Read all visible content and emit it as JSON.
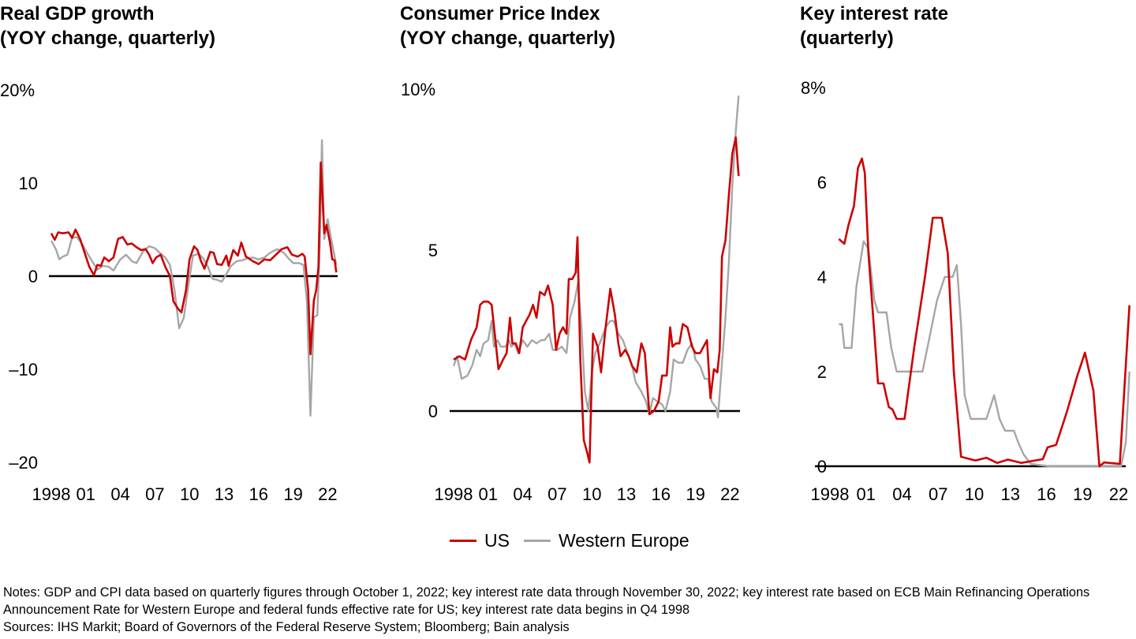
{
  "colors": {
    "us": "#cc0000",
    "we": "#a6a6a6",
    "axis": "#000000"
  },
  "legend": {
    "us": "US",
    "we": "Western Europe"
  },
  "notes": [
    "Notes: GDP and CPI data based on quarterly figures through October 1, 2022; key interest rate data through November 30, 2022; key interest rate based on ECB Main Refinancing Operations Announcement Rate for Western Europe and federal funds effective rate for US; key interest rate data begins in Q4 1998",
    "Sources: IHS Markit; Board of Governors of the Federal Reserve System; Bloomberg; Bain analysis"
  ],
  "chart_data": [
    {
      "type": "line",
      "title": "Real GDP growth\n(YOY change, quarterly)",
      "ylim": [
        -20,
        20
      ],
      "yticks": [
        {
          "v": 20,
          "label": "20%"
        },
        {
          "v": 10,
          "label": "10"
        },
        {
          "v": 0,
          "label": "0"
        },
        {
          "v": -10,
          "label": "–10"
        },
        {
          "v": -20,
          "label": "–20"
        }
      ],
      "xticks": [
        {
          "v": 1998,
          "label": "1998"
        },
        {
          "v": 2001,
          "label": "01"
        },
        {
          "v": 2004,
          "label": "04"
        },
        {
          "v": 2007,
          "label": "07"
        },
        {
          "v": 2010,
          "label": "10"
        },
        {
          "v": 2013,
          "label": "13"
        },
        {
          "v": 2016,
          "label": "16"
        },
        {
          "v": 2019,
          "label": "19"
        },
        {
          "v": 2022,
          "label": "22"
        }
      ],
      "series": [
        {
          "name": "Western Europe",
          "x": [
            1998.0,
            1998.4,
            1998.7,
            1999.0,
            1999.4,
            1999.8,
            2000.2,
            2000.6,
            2001.0,
            2001.5,
            2002.0,
            2002.5,
            2003.0,
            2003.4,
            2004.0,
            2004.5,
            2005.0,
            2005.4,
            2006.0,
            2006.5,
            2007.0,
            2007.5,
            2007.9,
            2008.3,
            2008.7,
            2009.1,
            2009.5,
            2009.9,
            2010.3,
            2010.8,
            2011.2,
            2011.6,
            2012.0,
            2012.4,
            2012.8,
            2013.2,
            2013.6,
            2014.1,
            2014.6,
            2015.0,
            2015.5,
            2016.0,
            2016.5,
            2017.0,
            2017.6,
            2018.2,
            2018.6,
            2019.0,
            2019.5,
            2019.9,
            2020.2,
            2020.5,
            2020.8,
            2021.1,
            2021.3,
            2021.5,
            2021.7,
            2022.0,
            2022.3,
            2022.75
          ],
          "y": [
            3.8,
            2.9,
            1.8,
            2.1,
            2.3,
            4.1,
            4.2,
            3.6,
            2.7,
            1.7,
            0.7,
            1.1,
            1.0,
            0.6,
            1.8,
            2.3,
            1.6,
            1.4,
            2.7,
            3.2,
            3.0,
            2.4,
            2.0,
            1.2,
            -1.5,
            -5.6,
            -4.5,
            -1.0,
            2.2,
            2.4,
            1.9,
            1.0,
            -0.3,
            -0.4,
            -0.6,
            0.2,
            1.1,
            1.6,
            1.7,
            1.9,
            2.0,
            1.8,
            2.0,
            2.5,
            2.9,
            2.5,
            1.9,
            1.4,
            1.4,
            1.2,
            -2.8,
            -15.0,
            -4.4,
            -4.2,
            3.0,
            14.6,
            4.0,
            6.1,
            4.0,
            1.2
          ]
        },
        {
          "name": "US",
          "x": [
            1998.0,
            1998.3,
            1998.6,
            1999.0,
            1999.5,
            1999.8,
            2000.1,
            2000.5,
            2000.9,
            2001.3,
            2001.7,
            2002.0,
            2002.3,
            2002.6,
            2003.0,
            2003.4,
            2003.8,
            2004.2,
            2004.6,
            2005.0,
            2005.4,
            2005.8,
            2006.2,
            2006.5,
            2006.8,
            2007.1,
            2007.5,
            2007.9,
            2008.3,
            2008.6,
            2009.0,
            2009.3,
            2009.7,
            2010.0,
            2010.4,
            2010.7,
            2011.0,
            2011.3,
            2011.8,
            2012.1,
            2012.4,
            2012.8,
            2013.2,
            2013.4,
            2013.8,
            2014.2,
            2014.5,
            2014.9,
            2015.5,
            2016.0,
            2016.5,
            2017.0,
            2017.5,
            2018.0,
            2018.5,
            2018.9,
            2019.4,
            2019.8,
            2020.0,
            2020.3,
            2020.5,
            2020.8,
            2021.0,
            2021.2,
            2021.4,
            2021.7,
            2021.9,
            2022.2,
            2022.4,
            2022.6,
            2022.75
          ],
          "y": [
            4.6,
            3.9,
            4.7,
            4.6,
            4.7,
            4.1,
            5.0,
            4.0,
            2.5,
            1.0,
            0.1,
            1.2,
            1.1,
            2.0,
            1.6,
            2.0,
            4.0,
            4.2,
            3.4,
            3.5,
            3.1,
            2.8,
            2.9,
            2.3,
            1.4,
            2.0,
            2.3,
            1.0,
            0.0,
            -2.7,
            -3.5,
            -3.9,
            -1.5,
            1.8,
            3.2,
            2.8,
            1.6,
            0.8,
            2.6,
            2.5,
            1.3,
            1.2,
            2.2,
            1.1,
            2.8,
            2.2,
            3.6,
            2.1,
            1.6,
            1.3,
            1.8,
            1.7,
            2.3,
            2.9,
            3.1,
            2.3,
            2.1,
            2.4,
            2.1,
            -1.5,
            -8.4,
            -2.6,
            -1.5,
            1.0,
            12.2,
            4.6,
            5.5,
            3.6,
            1.8,
            1.7,
            0.4
          ]
        }
      ]
    },
    {
      "type": "line",
      "title": "Consumer Price Index\n(YOY change, quarterly)",
      "ylim": [
        -2,
        10
      ],
      "yticks": [
        {
          "v": 10,
          "label": "10%"
        },
        {
          "v": 5,
          "label": "5"
        },
        {
          "v": 0,
          "label": "0"
        }
      ],
      "xticks": [
        {
          "v": 1998,
          "label": "1998"
        },
        {
          "v": 2001,
          "label": "01"
        },
        {
          "v": 2004,
          "label": "04"
        },
        {
          "v": 2007,
          "label": "07"
        },
        {
          "v": 2010,
          "label": "10"
        },
        {
          "v": 2013,
          "label": "13"
        },
        {
          "v": 2016,
          "label": "16"
        },
        {
          "v": 2019,
          "label": "19"
        },
        {
          "v": 2022,
          "label": "22"
        }
      ],
      "series": [
        {
          "name": "Western Europe",
          "x": [
            1998.0,
            1998.3,
            1998.7,
            1999.2,
            1999.6,
            2000.0,
            2000.3,
            2000.6,
            2001.0,
            2001.3,
            2001.5,
            2001.8,
            2002.1,
            2002.5,
            2002.8,
            2003.0,
            2003.3,
            2003.6,
            2004.0,
            2004.4,
            2004.8,
            2005.2,
            2005.6,
            2005.9,
            2006.3,
            2006.6,
            2007.0,
            2007.4,
            2007.8,
            2008.1,
            2008.5,
            2008.8,
            2009.1,
            2009.4,
            2009.7,
            2010.0,
            2010.3,
            2010.8,
            2011.2,
            2011.6,
            2011.9,
            2012.3,
            2012.7,
            2013.1,
            2013.5,
            2013.8,
            2014.3,
            2014.7,
            2015.0,
            2015.3,
            2015.7,
            2016.1,
            2016.4,
            2016.8,
            2017.1,
            2017.5,
            2017.9,
            2018.3,
            2018.7,
            2019.0,
            2019.4,
            2019.8,
            2020.1,
            2020.4,
            2020.8,
            2020.95,
            2021.3,
            2021.6,
            2021.9,
            2022.2,
            2022.5,
            2022.75
          ],
          "y": [
            1.4,
            1.7,
            1.0,
            1.1,
            1.4,
            1.9,
            1.7,
            2.1,
            2.2,
            2.8,
            2.0,
            2.2,
            2.0,
            2.0,
            2.2,
            2.0,
            2.1,
            1.8,
            2.2,
            2.0,
            2.2,
            2.1,
            2.2,
            2.2,
            2.4,
            1.9,
            1.9,
            2.0,
            1.8,
            2.9,
            3.4,
            4.0,
            2.6,
            0.6,
            0.0,
            1.2,
            1.8,
            2.2,
            2.6,
            2.8,
            2.8,
            2.4,
            2.2,
            1.8,
            1.4,
            0.9,
            0.6,
            0.3,
            -0.1,
            0.4,
            0.3,
            0.2,
            0.0,
            0.6,
            1.6,
            1.5,
            1.5,
            1.9,
            2.1,
            1.6,
            1.4,
            1.0,
            1.0,
            0.3,
            0.1,
            -0.2,
            1.5,
            2.9,
            4.6,
            7.0,
            8.7,
            9.8
          ]
        },
        {
          "name": "US",
          "x": [
            1998.0,
            1998.5,
            1999.0,
            1999.5,
            2000.0,
            2000.3,
            2000.6,
            2001.0,
            2001.3,
            2001.6,
            2001.9,
            2002.3,
            2002.6,
            2002.9,
            2003.1,
            2003.4,
            2003.7,
            2004.0,
            2004.3,
            2004.6,
            2004.9,
            2005.2,
            2005.5,
            2005.9,
            2006.2,
            2006.6,
            2006.9,
            2007.2,
            2007.5,
            2007.8,
            2008.0,
            2008.3,
            2008.6,
            2008.75,
            2009.0,
            2009.3,
            2009.6,
            2009.8,
            2010.1,
            2010.5,
            2010.8,
            2011.2,
            2011.6,
            2012.0,
            2012.3,
            2012.5,
            2012.9,
            2013.2,
            2013.5,
            2013.9,
            2014.3,
            2014.6,
            2015.0,
            2015.4,
            2015.8,
            2016.1,
            2016.5,
            2016.8,
            2017.0,
            2017.3,
            2017.6,
            2017.9,
            2018.3,
            2018.7,
            2019.0,
            2019.4,
            2019.7,
            2020.0,
            2020.3,
            2020.6,
            2020.9,
            2021.1,
            2021.3,
            2021.6,
            2021.9,
            2022.2,
            2022.5,
            2022.75
          ],
          "y": [
            1.6,
            1.7,
            1.6,
            2.2,
            2.6,
            3.3,
            3.4,
            3.4,
            3.3,
            2.3,
            1.3,
            1.6,
            1.8,
            2.9,
            2.1,
            2.1,
            1.8,
            2.6,
            2.8,
            3.0,
            3.3,
            2.9,
            3.7,
            3.6,
            3.9,
            3.3,
            1.9,
            2.4,
            2.6,
            2.4,
            4.1,
            4.1,
            4.3,
            5.4,
            1.6,
            -0.9,
            -1.3,
            -1.6,
            2.4,
            2.0,
            1.2,
            2.6,
            3.8,
            3.0,
            2.1,
            1.7,
            1.9,
            1.7,
            1.4,
            1.2,
            2.1,
            1.8,
            -0.1,
            0.0,
            0.3,
            1.1,
            1.1,
            2.6,
            2.0,
            2.1,
            2.1,
            2.7,
            2.6,
            2.0,
            1.8,
            1.8,
            2.0,
            2.2,
            0.4,
            1.3,
            1.2,
            1.9,
            4.8,
            5.3,
            6.7,
            8.0,
            8.5,
            7.3
          ]
        }
      ]
    },
    {
      "type": "line",
      "title": "Key interest rate\n(quarterly)",
      "ylim": [
        0,
        8
      ],
      "yticks": [
        {
          "v": 8,
          "label": "8%"
        },
        {
          "v": 6,
          "label": "6"
        },
        {
          "v": 4,
          "label": "4"
        },
        {
          "v": 2,
          "label": "2"
        },
        {
          "v": 0,
          "label": "0"
        }
      ],
      "xticks": [
        {
          "v": 1998,
          "label": "1998"
        },
        {
          "v": 2001,
          "label": "01"
        },
        {
          "v": 2004,
          "label": "04"
        },
        {
          "v": 2007,
          "label": "07"
        },
        {
          "v": 2010,
          "label": "10"
        },
        {
          "v": 2013,
          "label": "13"
        },
        {
          "v": 2016,
          "label": "16"
        },
        {
          "v": 2019,
          "label": "19"
        },
        {
          "v": 2022,
          "label": "22"
        }
      ],
      "series": [
        {
          "name": "Western Europe",
          "x": [
            1998.75,
            1999.0,
            1999.2,
            1999.8,
            2000.2,
            2000.8,
            2001.2,
            2001.7,
            2002.0,
            2002.7,
            2003.1,
            2003.55,
            2005.7,
            2006.3,
            2006.9,
            2007.55,
            2008.2,
            2008.55,
            2008.9,
            2009.2,
            2009.7,
            2011.0,
            2011.65,
            2012.1,
            2012.55,
            2013.3,
            2013.65,
            2014.1,
            2014.7,
            2016.2,
            2022.2,
            2022.6,
            2022.9
          ],
          "y": [
            3.0,
            3.0,
            2.5,
            2.5,
            3.8,
            4.75,
            4.6,
            3.5,
            3.25,
            3.25,
            2.5,
            2.0,
            2.0,
            2.75,
            3.5,
            4.0,
            4.0,
            4.25,
            3.0,
            1.5,
            1.0,
            1.0,
            1.5,
            1.0,
            0.75,
            0.75,
            0.5,
            0.25,
            0.05,
            0.0,
            0.0,
            0.5,
            2.0
          ]
        },
        {
          "name": "US",
          "x": [
            1998.75,
            1999.2,
            1999.55,
            2000.0,
            2000.33,
            2000.66,
            2000.9,
            2001.2,
            2001.7,
            2002.0,
            2002.45,
            2002.9,
            2003.2,
            2003.55,
            2004.2,
            2005.0,
            2005.9,
            2006.55,
            2007.3,
            2007.8,
            2008.3,
            2008.9,
            2010.1,
            2011.0,
            2011.9,
            2012.8,
            2013.9,
            2015.7,
            2016.1,
            2016.8,
            2017.7,
            2018.55,
            2019.2,
            2019.9,
            2020.4,
            2020.8,
            2022.1,
            2022.9
          ],
          "y": [
            4.8,
            4.7,
            5.1,
            5.5,
            6.3,
            6.5,
            6.2,
            4.5,
            2.8,
            1.75,
            1.75,
            1.25,
            1.2,
            1.0,
            1.0,
            2.5,
            4.0,
            5.25,
            5.25,
            4.5,
            2.0,
            0.2,
            0.12,
            0.18,
            0.07,
            0.14,
            0.07,
            0.15,
            0.4,
            0.45,
            1.15,
            1.9,
            2.4,
            1.6,
            0.0,
            0.08,
            0.05,
            3.4
          ]
        }
      ]
    }
  ]
}
